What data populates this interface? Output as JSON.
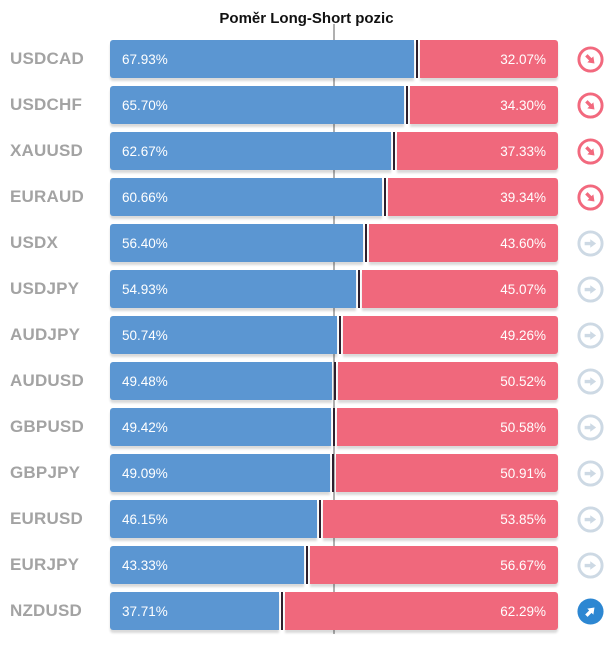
{
  "title": "Poměr Long-Short pozic",
  "colors": {
    "long": "#5b96d2",
    "short": "#f0687c",
    "divider_marker": "#2d1f2d",
    "center_line": "#b0b0b0",
    "pair_label": "#a3a3a3",
    "icon_down": "#f2697e",
    "icon_neutral": "#cdd9e4",
    "icon_up": "#2d87d2"
  },
  "chart_data": {
    "type": "bar",
    "subtype": "horizontal-stacked-percent",
    "title": "Poměr Long-Short pozic",
    "categories": [
      "USDCAD",
      "USDCHF",
      "XAUUSD",
      "EURAUD",
      "USDX",
      "USDJPY",
      "AUDJPY",
      "AUDUSD",
      "GBPUSD",
      "GBPJPY",
      "EURUSD",
      "EURJPY",
      "NZDUSD"
    ],
    "series": [
      {
        "name": "Long %",
        "color": "#5b96d2",
        "values": [
          67.93,
          65.7,
          62.67,
          60.66,
          56.4,
          54.93,
          50.74,
          49.48,
          49.42,
          49.09,
          46.15,
          43.33,
          37.71
        ]
      },
      {
        "name": "Short %",
        "color": "#f0687c",
        "values": [
          32.07,
          34.3,
          37.33,
          39.34,
          43.6,
          45.07,
          49.26,
          50.52,
          50.58,
          50.91,
          53.85,
          56.67,
          62.29
        ]
      }
    ],
    "x_range": [
      0,
      100
    ],
    "center_reference_pct": 50,
    "grid": false,
    "legend": "none",
    "value_labels": "inside-bar-ends"
  },
  "rows": [
    {
      "pair": "USDCAD",
      "long_pct": 67.93,
      "short_pct": 32.07,
      "long_label": "67.93%",
      "short_label": "32.07%",
      "signal": "down",
      "icon": "trend-down-icon"
    },
    {
      "pair": "USDCHF",
      "long_pct": 65.7,
      "short_pct": 34.3,
      "long_label": "65.70%",
      "short_label": "34.30%",
      "signal": "down",
      "icon": "trend-down-icon"
    },
    {
      "pair": "XAUUSD",
      "long_pct": 62.67,
      "short_pct": 37.33,
      "long_label": "62.67%",
      "short_label": "37.33%",
      "signal": "down",
      "icon": "trend-down-icon"
    },
    {
      "pair": "EURAUD",
      "long_pct": 60.66,
      "short_pct": 39.34,
      "long_label": "60.66%",
      "short_label": "39.34%",
      "signal": "down",
      "icon": "trend-down-icon"
    },
    {
      "pair": "USDX",
      "long_pct": 56.4,
      "short_pct": 43.6,
      "long_label": "56.40%",
      "short_label": "43.60%",
      "signal": "neutral",
      "icon": "trend-neutral-icon"
    },
    {
      "pair": "USDJPY",
      "long_pct": 54.93,
      "short_pct": 45.07,
      "long_label": "54.93%",
      "short_label": "45.07%",
      "signal": "neutral",
      "icon": "trend-neutral-icon"
    },
    {
      "pair": "AUDJPY",
      "long_pct": 50.74,
      "short_pct": 49.26,
      "long_label": "50.74%",
      "short_label": "49.26%",
      "signal": "neutral",
      "icon": "trend-neutral-icon"
    },
    {
      "pair": "AUDUSD",
      "long_pct": 49.48,
      "short_pct": 50.52,
      "long_label": "49.48%",
      "short_label": "50.52%",
      "signal": "neutral",
      "icon": "trend-neutral-icon"
    },
    {
      "pair": "GBPUSD",
      "long_pct": 49.42,
      "short_pct": 50.58,
      "long_label": "49.42%",
      "short_label": "50.58%",
      "signal": "neutral",
      "icon": "trend-neutral-icon"
    },
    {
      "pair": "GBPJPY",
      "long_pct": 49.09,
      "short_pct": 50.91,
      "long_label": "49.09%",
      "short_label": "50.91%",
      "signal": "neutral",
      "icon": "trend-neutral-icon"
    },
    {
      "pair": "EURUSD",
      "long_pct": 46.15,
      "short_pct": 53.85,
      "long_label": "46.15%",
      "short_label": "53.85%",
      "signal": "neutral",
      "icon": "trend-neutral-icon"
    },
    {
      "pair": "EURJPY",
      "long_pct": 43.33,
      "short_pct": 56.67,
      "long_label": "43.33%",
      "short_label": "56.67%",
      "signal": "neutral",
      "icon": "trend-neutral-icon"
    },
    {
      "pair": "NZDUSD",
      "long_pct": 37.71,
      "short_pct": 62.29,
      "long_label": "37.71%",
      "short_label": "62.29%",
      "signal": "up",
      "icon": "trend-up-icon"
    }
  ]
}
